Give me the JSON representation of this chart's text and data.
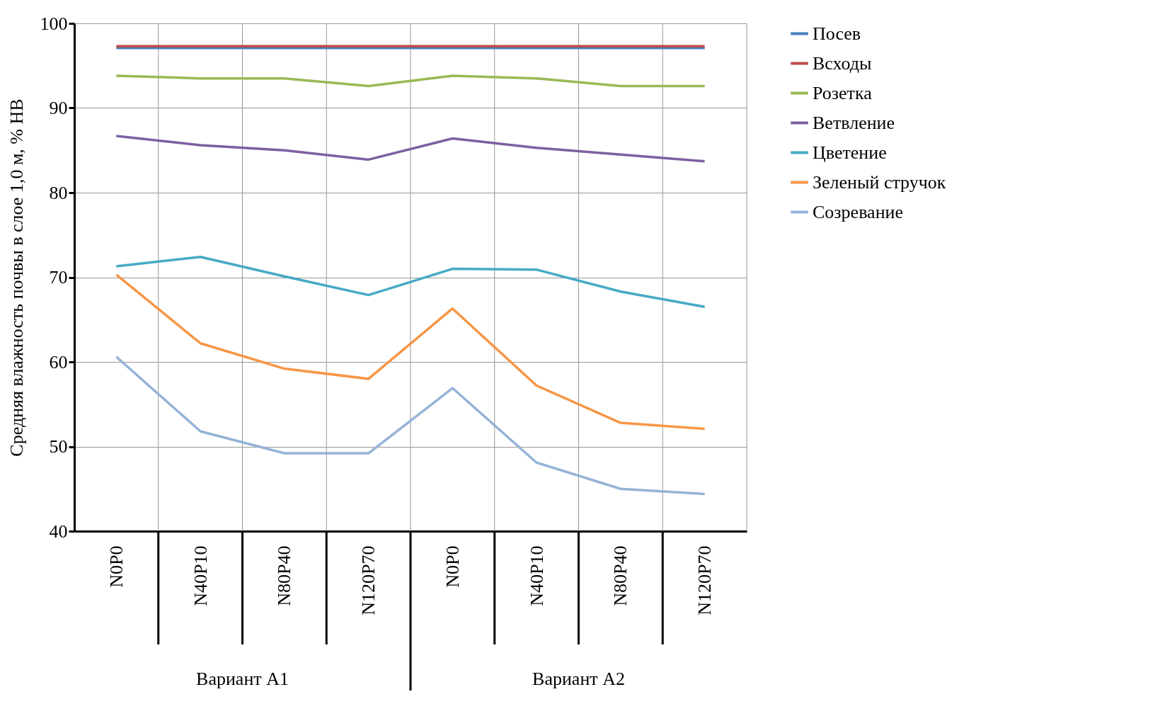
{
  "chart_data": {
    "type": "line",
    "ylabel": "Средняя влажность почвы в слое 1,0 м, % НВ",
    "categories": [
      "N0P0",
      "N40P10",
      "N80P40",
      "N120P70",
      "N0P0",
      "N40P10",
      "N80P40",
      "N120P70"
    ],
    "series": [
      {
        "name": "Посев",
        "color": "#4a7ebb",
        "values": [
          97.1,
          97.1,
          97.1,
          97.1,
          97.1,
          97.1,
          97.1,
          97.1
        ]
      },
      {
        "name": "Всходы",
        "color": "#be4b48",
        "values": [
          97.3,
          97.3,
          97.3,
          97.3,
          97.3,
          97.3,
          97.3,
          97.3
        ]
      },
      {
        "name": "Розетка",
        "color": "#98b954",
        "values": [
          93.8,
          93.5,
          93.5,
          92.6,
          93.8,
          93.5,
          92.6,
          92.6
        ]
      },
      {
        "name": "Ветвление",
        "color": "#7d60a0",
        "values": [
          86.7,
          85.6,
          85.0,
          83.9,
          86.4,
          85.3,
          84.5,
          83.7
        ]
      },
      {
        "name": "Цветение",
        "color": "#46aac5",
        "values": [
          71.3,
          72.4,
          70.1,
          67.9,
          71.0,
          70.9,
          68.3,
          66.5
        ]
      },
      {
        "name": " Зеленый стручок",
        "color": "#f79646",
        "values": [
          70.3,
          62.2,
          59.2,
          58.0,
          66.3,
          57.2,
          52.8,
          52.1
        ]
      },
      {
        "name": "Созревание",
        "color": "#95b3d7",
        "values": [
          60.6,
          51.8,
          49.2,
          49.2,
          56.9,
          48.1,
          45.0,
          44.4
        ]
      }
    ],
    "annotations": [
      "Вариант A1",
      "Вариант A2"
    ],
    "ylim": [
      40,
      100
    ],
    "yticks": [
      40,
      50,
      60,
      70,
      80,
      90,
      100
    ],
    "grid": true,
    "legend": "right",
    "marker": "none",
    "line_style": "solid"
  }
}
